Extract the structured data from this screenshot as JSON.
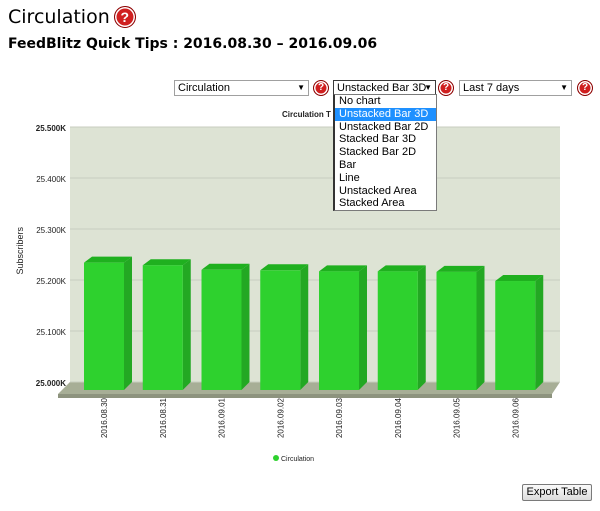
{
  "page": {
    "title": "Circulation",
    "subtitle": "FeedBlitz Quick Tips : 2016.08.30 – 2016.09.06",
    "export_label": "Export Table"
  },
  "controls": {
    "metric_select": "Circulation",
    "chart_type_select": "Unstacked Bar 3D",
    "range_select": "Last 7 days",
    "help_glyph": "?",
    "chart_type_options": [
      "No chart",
      "Unstacked Bar 3D",
      "Unstacked Bar 2D",
      "Stacked Bar 3D",
      "Stacked Bar 2D",
      "Bar",
      "Line",
      "Unstacked Area",
      "Stacked Area"
    ],
    "chart_type_selected_index": 1
  },
  "colors": {
    "bar_front": "#2ed12e",
    "bar_side": "#23a823",
    "bar_top": "#1fb01f",
    "plot_bg": "#dde3d4",
    "floor": "#a7ae96",
    "help_red": "#d01f1f",
    "highlight": "#1e90ff"
  },
  "chart_data": {
    "type": "bar",
    "title": "Circulation T",
    "ylabel": "Subscribers",
    "categories": [
      "2016.08.30",
      "2016.08.31",
      "2016.09.01",
      "2016.09.02",
      "2016.09.03",
      "2016.09.04",
      "2016.09.05",
      "2016.09.06"
    ],
    "series": [
      {
        "name": "Circulation",
        "values": [
          25234,
          25229,
          25220,
          25219,
          25217,
          25217,
          25216,
          25198
        ]
      }
    ],
    "ylim": [
      25000,
      25500
    ],
    "yticks": [
      25000,
      25100,
      25200,
      25300,
      25400,
      25500
    ],
    "ytick_labels": [
      "25.000K",
      "25.100K",
      "25.200K",
      "25.300K",
      "25.400K",
      "25.500K"
    ],
    "legend": "bottom",
    "grid": true
  }
}
